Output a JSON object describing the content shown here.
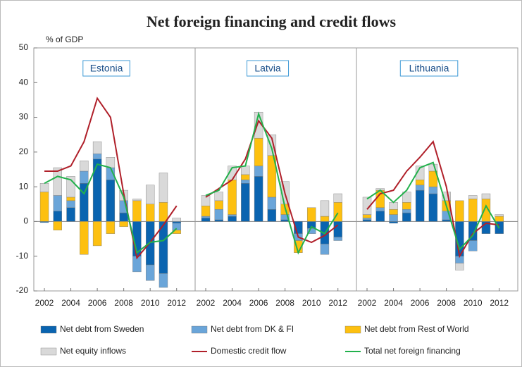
{
  "chart_data": {
    "type": "bar",
    "stacked": true,
    "title": "Net foreign financing and credit flows",
    "y_label": "% of GDP",
    "panels": [
      "Estonia",
      "Latvia",
      "Lithuania"
    ],
    "categories": [
      2002,
      2003,
      2004,
      2005,
      2006,
      2007,
      2008,
      2009,
      2010,
      2011,
      2012
    ],
    "xticks": [
      2002,
      2004,
      2006,
      2008,
      2010,
      2012
    ],
    "ylim": [
      -20,
      50
    ],
    "yticks": [
      -20,
      -10,
      0,
      10,
      20,
      30,
      40,
      50
    ],
    "series": [
      {
        "name": "Net debt from Sweden",
        "kind": "bar",
        "color": "#0a64b0",
        "values": [
          [
            -0.3,
            3,
            4,
            11,
            18,
            12,
            2.5,
            -10,
            -12.5,
            -15,
            -0.5
          ],
          [
            1,
            0.5,
            1.5,
            11,
            13,
            3.5,
            0.5,
            -3.5,
            -2,
            -6.5,
            -4.5
          ],
          [
            0.5,
            3,
            -0.5,
            2.5,
            9,
            8,
            0.5,
            -10,
            -5.5,
            -3.5,
            -3.5
          ]
        ]
      },
      {
        "name": "Net debt from DK & FI",
        "kind": "bar",
        "color": "#6aa5d9",
        "values": [
          [
            0,
            4.5,
            2,
            3.5,
            1.5,
            3.5,
            3.5,
            -4.5,
            -4.5,
            -4,
            -2
          ],
          [
            0.5,
            3,
            0.5,
            1,
            3,
            3.5,
            1.5,
            -2,
            -1.5,
            -3,
            -1
          ],
          [
            0.5,
            1,
            2,
            1,
            1.5,
            2,
            2.5,
            -2,
            -3,
            0,
            0
          ]
        ]
      },
      {
        "name": "Net debt from Rest of World",
        "kind": "bar",
        "color": "#fdc010",
        "values": [
          [
            8.5,
            -2.5,
            1,
            -9.5,
            -7,
            -3.5,
            -1.5,
            6,
            5,
            5.5,
            -1
          ],
          [
            3,
            2.5,
            10,
            1.5,
            8,
            12,
            3,
            -3.5,
            4,
            1.5,
            5.5
          ],
          [
            1,
            5,
            1.5,
            2,
            1.5,
            4.5,
            3,
            6,
            6.5,
            6.5,
            1.5
          ]
        ]
      },
      {
        "name": "Net equity inflows",
        "kind": "bar",
        "color": "#d9d9d9",
        "values": [
          [
            2.5,
            8,
            6,
            3,
            3.5,
            3,
            3,
            0.5,
            5.5,
            8.5,
            1
          ],
          [
            3,
            2.5,
            4,
            2.5,
            7.5,
            6,
            6.5,
            0,
            0,
            4.5,
            2.5
          ],
          [
            5,
            0.5,
            2,
            3,
            4,
            2,
            2.5,
            -2,
            1,
            1.5,
            0.5
          ]
        ]
      },
      {
        "name": "Domestic credit flow",
        "kind": "line",
        "color": "#b0202a",
        "values": [
          [
            14.5,
            14.5,
            16,
            23,
            35.5,
            30,
            8,
            -10.5,
            -6,
            -1,
            4.5
          ],
          [
            7,
            9.5,
            12,
            18,
            29,
            24,
            8,
            -4.5,
            -6,
            -4,
            -1
          ],
          [
            3.5,
            8,
            9,
            14.5,
            18.5,
            23,
            10,
            -10,
            -3.5,
            -0.5,
            -1
          ]
        ]
      },
      {
        "name": "Total net foreign financing",
        "kind": "line",
        "color": "#22b14c",
        "values": [
          [
            11,
            13,
            12,
            8,
            16.5,
            15.5,
            7,
            -9,
            -6,
            -5.5,
            -2
          ],
          [
            7.5,
            9,
            15.5,
            16,
            31,
            21,
            4,
            -9,
            -1.5,
            -3.5,
            2.5
          ],
          [
            6.5,
            9,
            5.5,
            9,
            15.5,
            17,
            4.5,
            -8,
            -4,
            4.5,
            -2
          ]
        ]
      }
    ]
  }
}
